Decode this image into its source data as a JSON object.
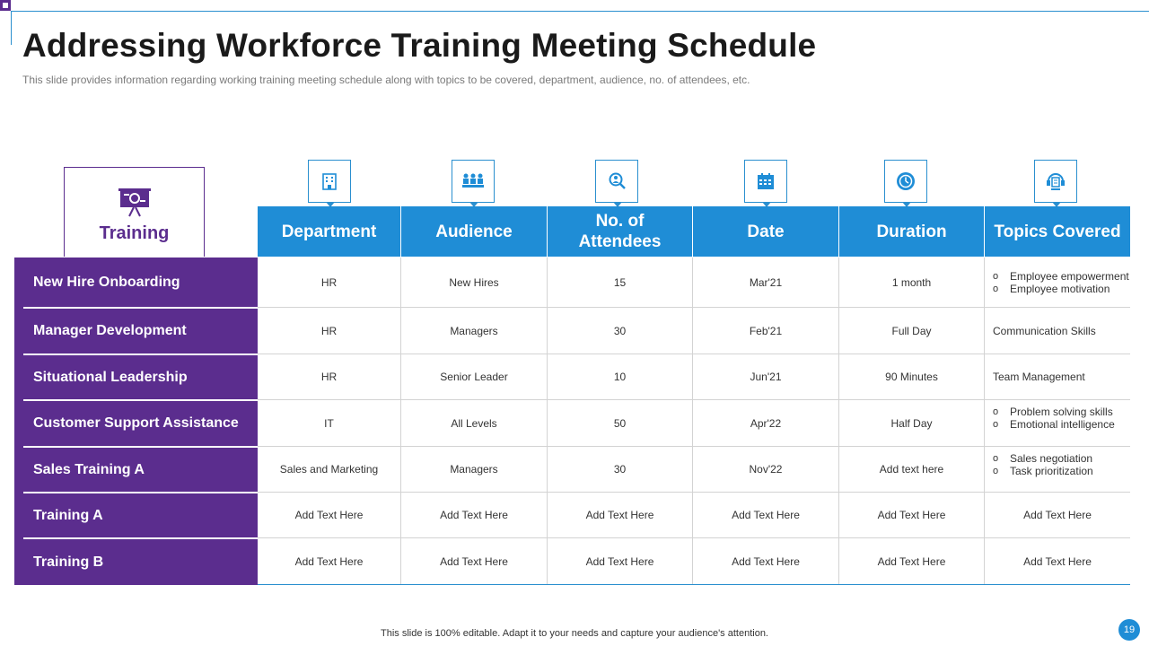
{
  "title": "Addressing Workforce Training Meeting Schedule",
  "subtitle": "This slide provides  information  regarding  working training meeting schedule along with topics to be covered,  department,  audience,  no. of attendees, etc.",
  "corner_label": "Training",
  "columns": [
    {
      "label": "Department",
      "icon": "building-icon"
    },
    {
      "label": "Audience",
      "icon": "audience-icon"
    },
    {
      "label": "No. of Attendees",
      "icon": "search-people-icon"
    },
    {
      "label": "Date",
      "icon": "calendar-icon"
    },
    {
      "label": "Duration",
      "icon": "clock-icon"
    },
    {
      "label": "Topics Covered",
      "icon": "headset-icon"
    }
  ],
  "rows": [
    {
      "name": "New Hire Onboarding",
      "department": "HR",
      "audience": "New Hires",
      "attendees": "15",
      "date": "Mar'21",
      "duration": "1 month",
      "topics": [
        "Employee empowerment",
        "Employee motivation"
      ]
    },
    {
      "name": "Manager Development",
      "department": "HR",
      "audience": "Managers",
      "attendees": "30",
      "date": "Feb'21",
      "duration": "Full Day",
      "topics_text": "Communication Skills"
    },
    {
      "name": "Situational Leadership",
      "department": "HR",
      "audience": "Senior Leader",
      "attendees": "10",
      "date": "Jun'21",
      "duration": "90 Minutes",
      "topics_text": "Team Management"
    },
    {
      "name": "Customer Support Assistance",
      "department": "IT",
      "audience": "All Levels",
      "attendees": "50",
      "date": "Apr'22",
      "duration": "Half Day",
      "topics": [
        "Problem solving skills",
        "Emotional intelligence"
      ]
    },
    {
      "name": "Sales Training A",
      "department": "Sales and Marketing",
      "audience": "Managers",
      "attendees": "30",
      "date": "Nov'22",
      "duration": "Add text here",
      "topics": [
        "Sales negotiation",
        "Task prioritization"
      ]
    },
    {
      "name": "Training A",
      "department": "Add Text Here",
      "audience": "Add Text Here",
      "attendees": "Add Text Here",
      "date": "Add Text Here",
      "duration": "Add Text Here",
      "topics_center": "Add Text Here"
    },
    {
      "name": "Training B",
      "department": "Add Text Here",
      "audience": "Add Text Here",
      "attendees": "Add Text Here",
      "date": "Add Text Here",
      "duration": "Add Text Here",
      "topics_center": "Add Text Here"
    }
  ],
  "footer": "This slide is 100% editable. Adapt it to your needs and capture your audience's attention.",
  "page_number": "19",
  "colors": {
    "purple": "#5b2d8e",
    "blue": "#1f8dd6",
    "accent_line": "#2a8fcf"
  }
}
